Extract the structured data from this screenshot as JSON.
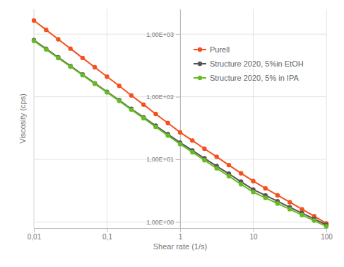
{
  "chart_data": {
    "type": "line",
    "xlabel": "Shear rate (1/s)",
    "ylabel": "Viscosity (cps)",
    "log": true,
    "grid": true,
    "legend": "top-right",
    "marker": "circle",
    "xlim": [
      0.01,
      100
    ],
    "ylim": [
      0.8,
      2500
    ],
    "xticks": [
      {
        "value": 0.01,
        "label": "0,01"
      },
      {
        "value": 0.1,
        "label": "0,1"
      },
      1,
      10,
      100
    ],
    "yticks": [
      {
        "value": 1,
        "label": "1,00E+00"
      },
      {
        "value": 10,
        "label": "1,00E+01"
      },
      {
        "value": 100,
        "label": "1,00E+02"
      },
      {
        "value": 1000,
        "label": "1,00E+03"
      }
    ],
    "x": [
      0.01,
      0.0147,
      0.0215,
      0.0316,
      0.0464,
      0.0681,
      0.1,
      0.147,
      0.215,
      0.316,
      0.464,
      0.681,
      1,
      1.47,
      2.15,
      3.16,
      4.64,
      6.81,
      10,
      14.7,
      21.5,
      31.6,
      46.4,
      68.1,
      100
    ],
    "series": [
      {
        "name": "Purell",
        "color": "#f4511e",
        "values": [
          1650,
          1170,
          828,
          587,
          416,
          295,
          209,
          149,
          105,
          75,
          53,
          38,
          27,
          20,
          14.8,
          11,
          8.1,
          6.0,
          4.5,
          3.45,
          2.67,
          2.07,
          1.6,
          1.24,
          0.95
        ]
      },
      {
        "name": "Structure 2020, 5%in EtOH",
        "color": "#555555",
        "values": [
          800,
          583,
          425,
          310,
          226,
          164,
          120,
          88,
          64,
          47,
          34.5,
          25.2,
          18.5,
          13.9,
          10.4,
          7.8,
          5.9,
          4.4,
          3.3,
          2.66,
          2.14,
          1.72,
          1.39,
          1.12,
          0.9
        ]
      },
      {
        "name": "Structure 2020, 5% in IPA",
        "color": "#66bb22",
        "values": [
          780,
          569,
          415,
          303,
          221,
          161,
          117.5,
          85.5,
          62.2,
          45.4,
          33,
          24,
          17.5,
          13,
          9.7,
          7.2,
          5.4,
          4.0,
          3.0,
          2.43,
          1.97,
          1.6,
          1.29,
          1.05,
          0.85
        ]
      }
    ]
  }
}
